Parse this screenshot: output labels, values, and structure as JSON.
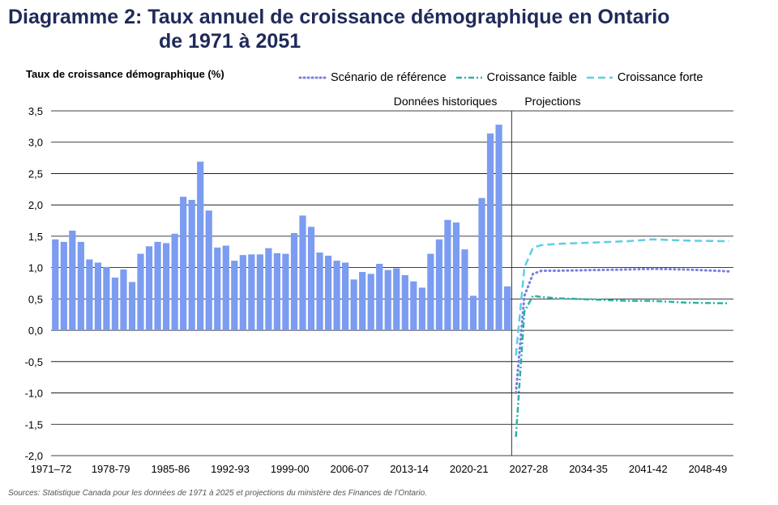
{
  "title_line1": "Diagramme 2: Taux annuel de croissance démographique en Ontario",
  "title_line2": "de 1971 à 2051",
  "source": "Sources: Statistique Canada pour les données de 1971 à 2025 et projections du ministère des Finances de l’Ontario.",
  "colors": {
    "bars": "#7b9cf0",
    "reference": "#7b7fe0",
    "low": "#2ab3a8",
    "high": "#5fcde6",
    "title": "#1f2a5a"
  },
  "chart_data": {
    "type": "bar",
    "ylabel": "Taux de croissance démographique (%)",
    "ylim": [
      -2.0,
      3.5
    ],
    "yticks": [
      "3,5",
      "3,0",
      "2,5",
      "2,0",
      "1,5",
      "1,0",
      "0,5",
      "0,0",
      "-0,5",
      "-1,0",
      "-1,5",
      "-2,0"
    ],
    "xtick_labels": [
      "1971–72",
      "1978-79",
      "1985-86",
      "1992-93",
      "1999-00",
      "2006-07",
      "2013-14",
      "2020-21",
      "2027-28",
      "2034-35",
      "2041-42",
      "2048-49"
    ],
    "grid": true,
    "section_labels": {
      "historical": "Données historiques",
      "projection": "Projections"
    },
    "historical": {
      "x": [
        "1971–72",
        "1972-73",
        "1973-74",
        "1974-75",
        "1975-76",
        "1976-77",
        "1977-78",
        "1978-79",
        "1979-80",
        "1980-81",
        "1981-82",
        "1982-83",
        "1983-84",
        "1984-85",
        "1985-86",
        "1986-87",
        "1987-88",
        "1988-89",
        "1989-90",
        "1990-91",
        "1991-92",
        "1992-93",
        "1993-94",
        "1994-95",
        "1995-96",
        "1996-97",
        "1997-98",
        "1998-99",
        "1999-00",
        "2000-01",
        "2001-02",
        "2002-03",
        "2003-04",
        "2004-05",
        "2005-06",
        "2006-07",
        "2007-08",
        "2008-09",
        "2009-10",
        "2010-11",
        "2011-12",
        "2012-13",
        "2013-14",
        "2014-15",
        "2015-16",
        "2016-17",
        "2017-18",
        "2018-19",
        "2019-20",
        "2020-21",
        "2021-22",
        "2022-23",
        "2023-24",
        "2024-25"
      ],
      "values": [
        1.45,
        1.41,
        1.59,
        1.41,
        1.13,
        1.08,
        1.01,
        0.84,
        0.97,
        0.77,
        1.22,
        1.34,
        1.41,
        1.39,
        1.54,
        2.13,
        2.08,
        2.69,
        1.91,
        1.32,
        1.35,
        1.11,
        1.2,
        1.21,
        1.21,
        1.31,
        1.23,
        1.22,
        1.55,
        1.83,
        1.65,
        1.24,
        1.19,
        1.11,
        1.08,
        0.81,
        0.93,
        0.9,
        1.06,
        0.96,
        0.99,
        0.88,
        0.78,
        0.68,
        1.22,
        1.45,
        1.76,
        1.72,
        1.29,
        0.55,
        2.11,
        3.14,
        3.28,
        0.7
      ]
    },
    "series": [
      {
        "name": "Scénario de référence",
        "style": "dotted",
        "x": [
          "2025-26",
          "2026-27",
          "2027-28",
          "2028-29",
          "2030-31",
          "2034-35",
          "2038-39",
          "2041-42",
          "2045-46",
          "2050-51"
        ],
        "values": [
          -1.0,
          0.55,
          0.9,
          0.95,
          0.95,
          0.96,
          0.97,
          0.98,
          0.97,
          0.94
        ]
      },
      {
        "name": "Croissance faible",
        "style": "dash-dot",
        "x": [
          "2025-26",
          "2026-27",
          "2027-28",
          "2028-29",
          "2030-31",
          "2034-35",
          "2038-39",
          "2041-42",
          "2045-46",
          "2050-51"
        ],
        "values": [
          -1.7,
          0.3,
          0.55,
          0.53,
          0.51,
          0.49,
          0.47,
          0.47,
          0.44,
          0.43
        ]
      },
      {
        "name": "Croissance forte",
        "style": "dashed",
        "x": [
          "2025-26",
          "2026-27",
          "2027-28",
          "2028-29",
          "2030-31",
          "2034-35",
          "2038-39",
          "2041-42",
          "2045-46",
          "2050-51"
        ],
        "values": [
          -0.4,
          1.0,
          1.32,
          1.36,
          1.38,
          1.4,
          1.42,
          1.45,
          1.43,
          1.42
        ]
      }
    ]
  }
}
